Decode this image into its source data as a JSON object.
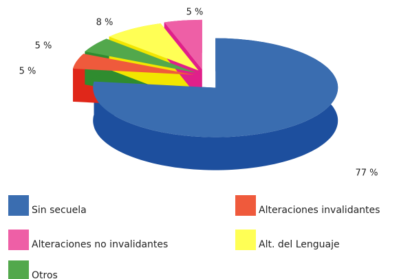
{
  "chart_data": {
    "type": "pie",
    "categories": [
      "Sin secuela",
      "Alteraciones invalidantes",
      "Alteraciones no invalidantes",
      "Alt. del Lenguaje",
      "Otros"
    ],
    "values": [
      77,
      5,
      5,
      8,
      5
    ],
    "value_labels": [
      "77 %",
      "5 %",
      "5 %",
      "8 %",
      "5 %"
    ],
    "colors": [
      "#3a6db0",
      "#ef5a3c",
      "#ee5fa6",
      "#ffff55",
      "#52a84c"
    ],
    "side_colors": [
      "#1d4f9e",
      "#e0271a",
      "#e0208a",
      "#f2e600",
      "#2f8c2f"
    ]
  }
}
